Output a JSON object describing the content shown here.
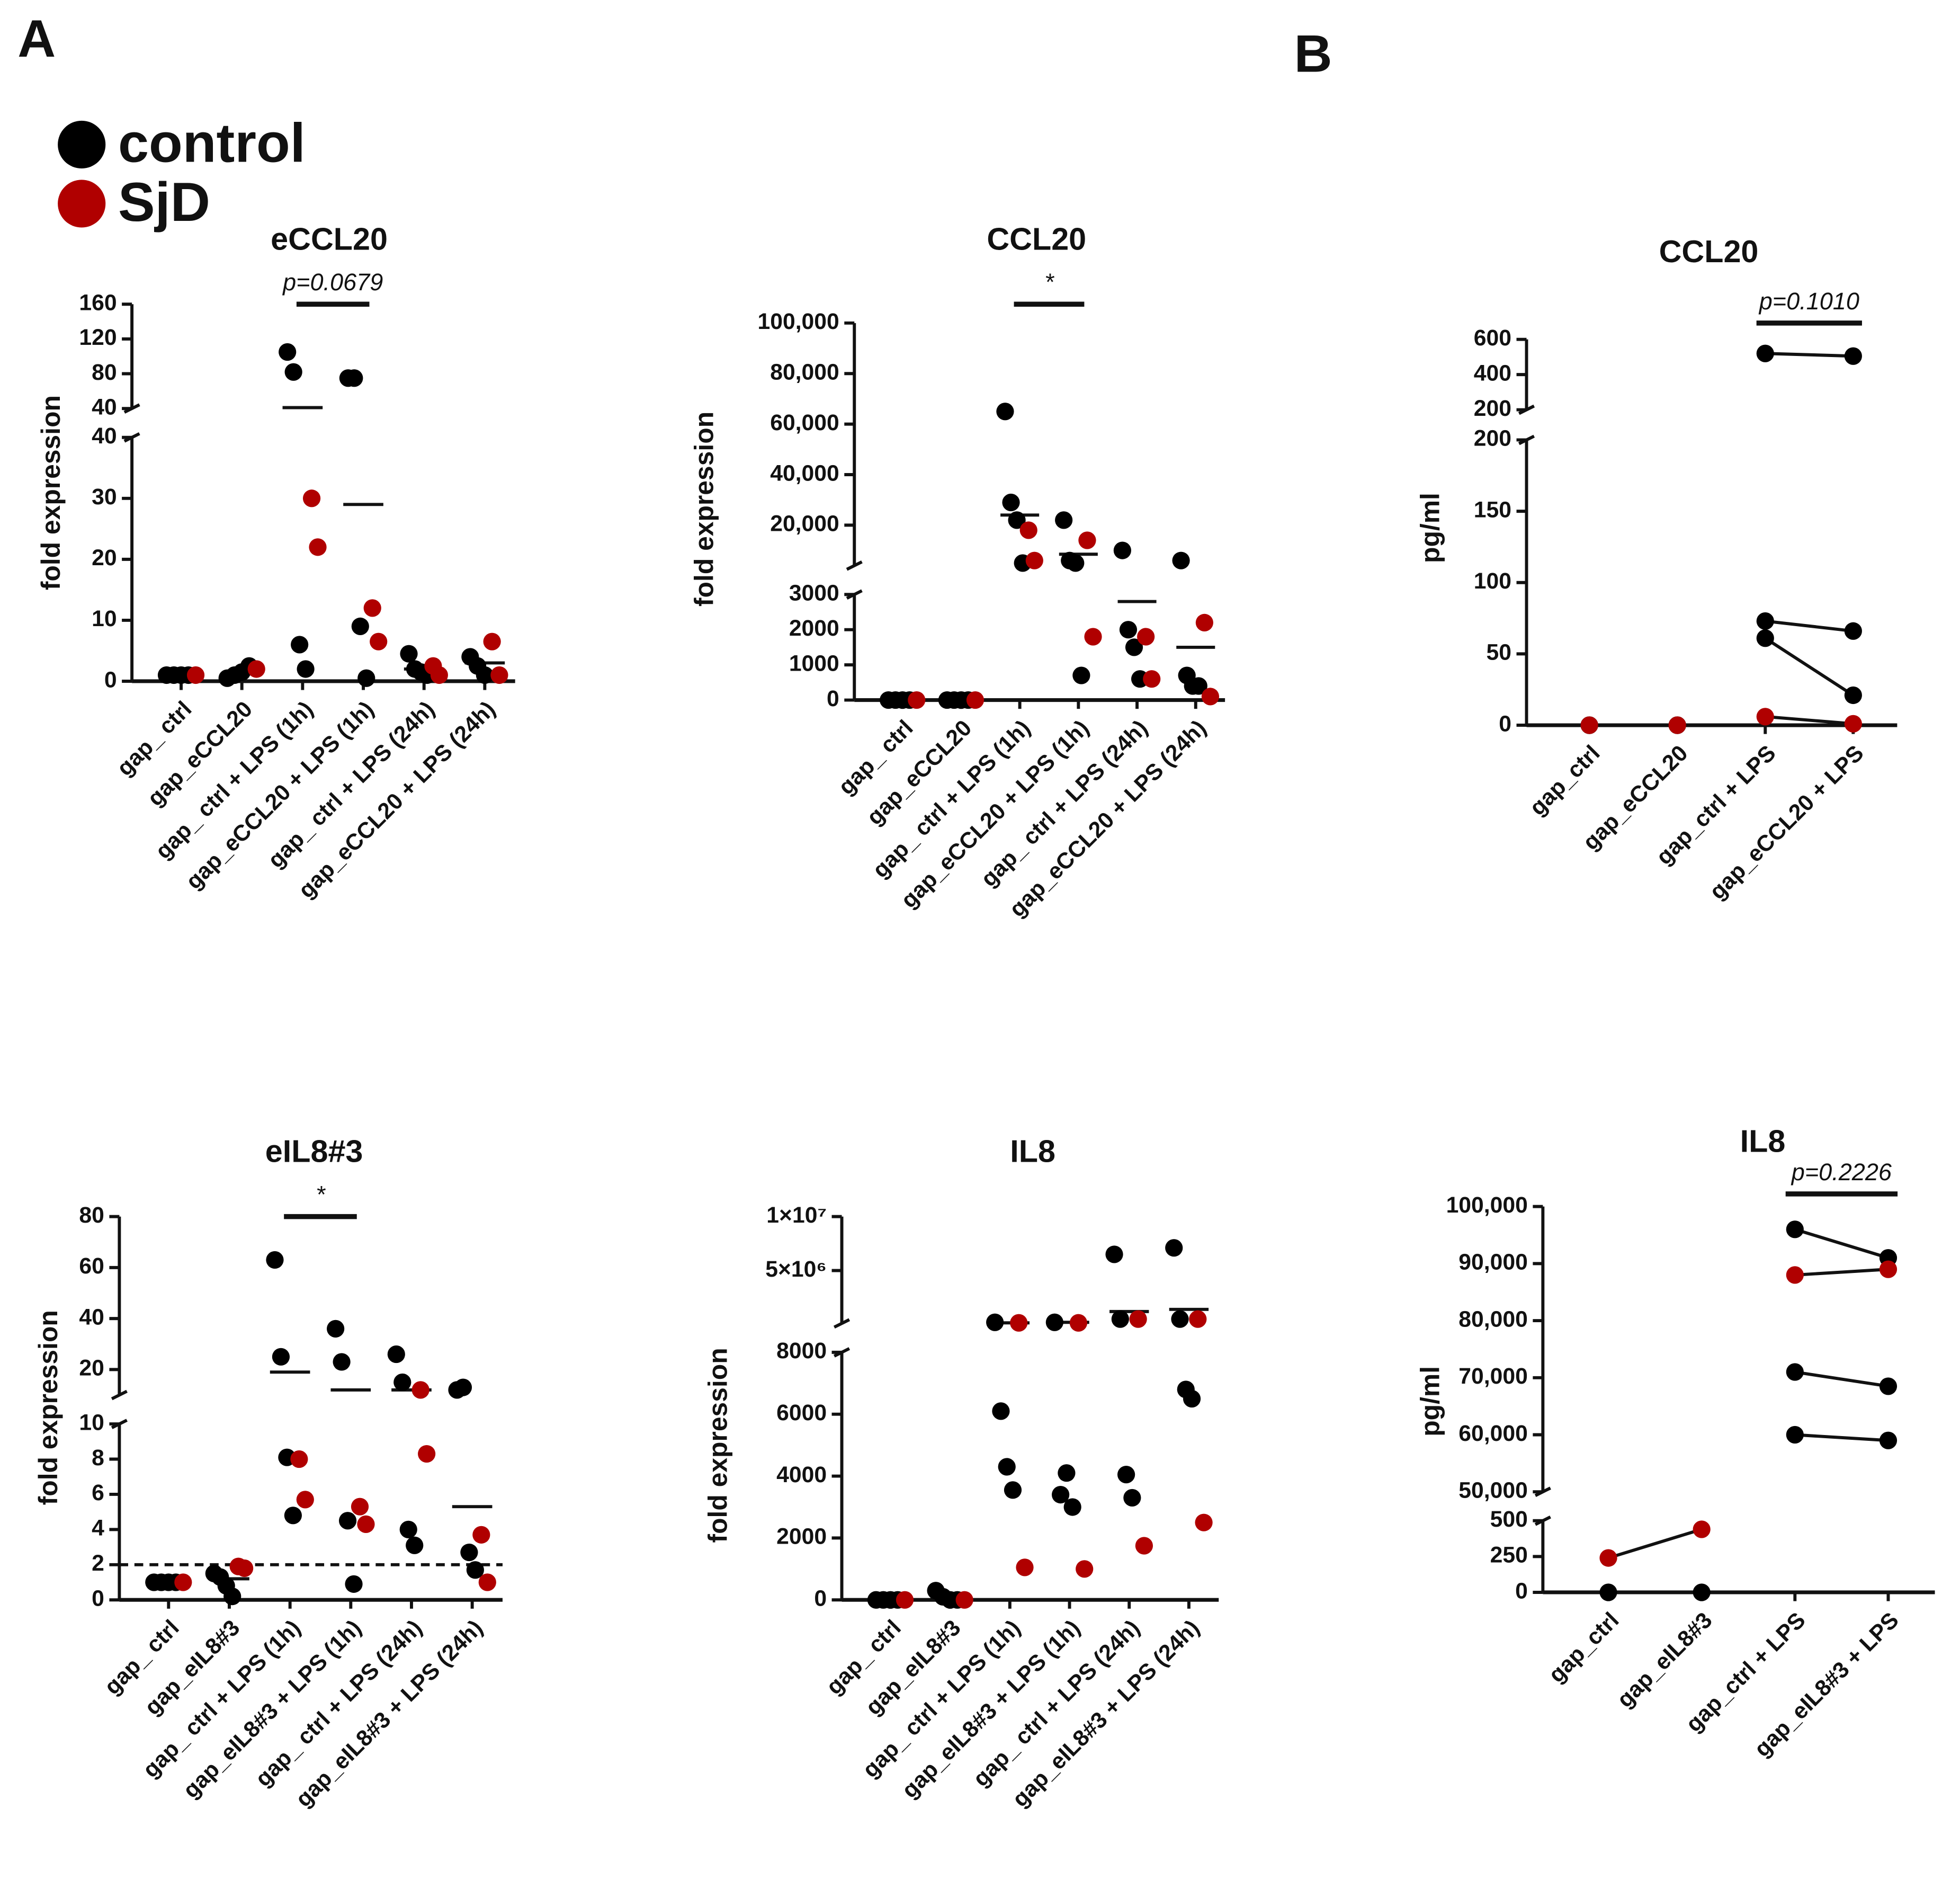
{
  "panels": [
    "A",
    "B"
  ],
  "legend": [
    {
      "name": "control",
      "color": "#000000"
    },
    {
      "name": "SjD",
      "color": "#b00000"
    }
  ],
  "chart_data": [
    {
      "type": "dot",
      "title": "eCCL20",
      "y_label": "fold expression",
      "categories": [
        "gap_ ctrl",
        "gap_eCCL20",
        "gap_ ctrl + LPS (1h)",
        "gap_eCCL20 + LPS (1h)",
        "gap_ ctrl + LPS (24h)",
        "gap_eCCL20 + LPS (24h)"
      ],
      "y_segments": [
        {
          "ylim": [
            0,
            40
          ],
          "yticks": [
            0,
            10,
            20,
            30,
            40
          ]
        },
        {
          "ylim": [
            40,
            160
          ],
          "yticks": [
            40,
            80,
            120,
            160
          ]
        }
      ],
      "series": [
        {
          "values": [
            [
              1,
              1,
              1,
              1
            ],
            [
              0.5,
              1,
              1.5,
              2.5
            ],
            [
              105,
              82,
              6,
              2
            ],
            [
              75,
              75,
              9,
              0.5
            ],
            [
              4.5,
              2,
              1.5,
              1
            ],
            [
              4,
              2.5,
              1
            ]
          ]
        },
        {
          "values": [
            [
              1
            ],
            [
              2
            ],
            [
              30,
              22
            ],
            [
              12,
              6.5
            ],
            [
              2.5,
              1
            ],
            [
              6.5,
              1
            ]
          ]
        }
      ],
      "means": [
        1,
        1.2,
        41,
        29,
        2,
        3
      ],
      "significance": [
        {
          "label": "p=0.0679",
          "from": 2,
          "to": 3
        }
      ]
    },
    {
      "type": "dot",
      "title": "CCL20",
      "y_label": "fold expression",
      "categories": [
        "gap_ ctrl",
        "gap_eCCL20",
        "gap_ ctrl + LPS (1h)",
        "gap_eCCL20 + LPS (1h)",
        "gap_ ctrl + LPS (24h)",
        "gap_eCCL20 + LPS (24h)"
      ],
      "y_segments": [
        {
          "ylim": [
            0,
            3000
          ],
          "yticks": [
            0,
            1000,
            2000,
            3000
          ]
        },
        {
          "ylim": [
            4000,
            100000
          ],
          "yticks": [
            {
              "value": 20000,
              "label": "20,000"
            },
            {
              "value": 40000,
              "label": "40,000"
            },
            {
              "value": 60000,
              "label": "60,000"
            },
            {
              "value": 80000,
              "label": "80,000"
            },
            {
              "value": 100000,
              "label": "100,000"
            }
          ]
        }
      ],
      "series": [
        {
          "values": [
            [
              0,
              0,
              0,
              0
            ],
            [
              0,
              0,
              0,
              0
            ],
            [
              65000,
              29000,
              22000,
              5000
            ],
            [
              22000,
              6000,
              5000,
              700
            ],
            [
              10000,
              2000,
              1500,
              600
            ],
            [
              6000,
              700,
              400,
              400
            ]
          ]
        },
        {
          "values": [
            [
              0
            ],
            [
              0
            ],
            [
              18000,
              6000
            ],
            [
              14000,
              1800
            ],
            [
              1800,
              600
            ],
            [
              2200,
              100
            ]
          ]
        }
      ],
      "means": [
        0,
        0,
        24000,
        8500,
        2800,
        1500
      ],
      "significance": [
        {
          "label": "*",
          "from": 2,
          "to": 3
        }
      ]
    },
    {
      "type": "paired",
      "title": "CCL20",
      "y_label": "pg/ml",
      "categories": [
        "gap_ctrl",
        "gap_eCCL20",
        "gap_ctrl + LPS",
        "gap_eCCL20 + LPS"
      ],
      "y_segments": [
        {
          "ylim": [
            0,
            200
          ],
          "yticks": [
            0,
            50,
            100,
            150,
            200
          ]
        },
        {
          "ylim": [
            200,
            600
          ],
          "yticks": [
            200,
            400,
            600
          ]
        }
      ],
      "series": [
        {
          "values": [
            [
              0,
              0,
              0
            ],
            [
              0,
              0,
              0
            ],
            [
              520,
              73,
              61
            ],
            [
              505,
              66,
              21
            ]
          ]
        },
        {
          "values": [
            [
              0
            ],
            [
              0
            ],
            [
              6
            ],
            [
              1
            ]
          ]
        }
      ],
      "significance": [
        {
          "label": "p=0.1010",
          "from": 2,
          "to": 3
        }
      ]
    },
    {
      "type": "dot",
      "title": "eIL8#3",
      "y_label": "fold expression",
      "categories": [
        "gap_ ctrl",
        "gap_eIL8#3",
        "gap_ ctrl + LPS (1h)",
        "gap_eIL8#3 + LPS (1h)",
        "gap_ ctrl + LPS (24h)",
        "gap_eIL8#3 + LPS (24h)"
      ],
      "y_segments": [
        {
          "ylim": [
            0,
            10
          ],
          "yticks": [
            0,
            2,
            4,
            6,
            8,
            10
          ]
        },
        {
          "ylim": [
            10,
            80
          ],
          "yticks": [
            20,
            40,
            60,
            80
          ]
        }
      ],
      "series": [
        {
          "values": [
            [
              1,
              1,
              1,
              1
            ],
            [
              1.5,
              1.3,
              0.8,
              0.2
            ],
            [
              63,
              25,
              8.1,
              4.8
            ],
            [
              36,
              23,
              4.5,
              0.9
            ],
            [
              26,
              15,
              4,
              3.1
            ],
            [
              12,
              13,
              2.7,
              1.7
            ]
          ]
        },
        {
          "values": [
            [
              1
            ],
            [
              1.9,
              1.8
            ],
            [
              8,
              5.7
            ],
            [
              5.3,
              4.3
            ],
            [
              12,
              8.3
            ],
            [
              3.7,
              1
            ]
          ]
        }
      ],
      "means": [
        1,
        1.2,
        19,
        12,
        12,
        5.3
      ],
      "reference_line": 2,
      "significance": [
        {
          "label": "*",
          "from": 2,
          "to": 3
        }
      ]
    },
    {
      "type": "dot",
      "title": "IL8",
      "y_label": "fold expression",
      "categories": [
        "gap_ ctrl",
        "gap_eIL8#3",
        "gap_ ctrl + LPS (1h)",
        "gap_eIL8#3 + LPS (1h)",
        "gap_ ctrl + LPS (24h)",
        "gap_eIL8#3 + LPS (24h)"
      ],
      "y_segments": [
        {
          "ylim": [
            0,
            8000
          ],
          "yticks": [
            0,
            2000,
            4000,
            6000,
            8000
          ]
        },
        {
          "ylim": [
            100000,
            10000000
          ],
          "yticks": [
            {
              "value": 5000000,
              "label": "5×10⁶"
            },
            {
              "value": 10000000,
              "label": "1×10⁷"
            }
          ]
        }
      ],
      "series": [
        {
          "values": [
            [
              0,
              0,
              0,
              0
            ],
            [
              300,
              100,
              0,
              0
            ],
            [
              200000,
              6100,
              4300,
              3550
            ],
            [
              200000,
              3400,
              4100,
              3000
            ],
            [
              6500000,
              500000,
              4050,
              3300
            ],
            [
              7100000,
              500000,
              6800,
              6500
            ]
          ]
        },
        {
          "values": [
            [
              0
            ],
            [
              0
            ],
            [
              150000,
              1050
            ],
            [
              150000,
              1000
            ],
            [
              500000,
              1750
            ],
            [
              500000,
              2500
            ]
          ]
        }
      ],
      "means": [
        0,
        80,
        150000,
        200000,
        1200000,
        1400000
      ],
      "significance": []
    },
    {
      "type": "paired",
      "title": "IL8",
      "y_label": "pg/ml",
      "categories": [
        "gap_ctrl",
        "gap_eIL8#3",
        "gap_ctrl + LPS",
        "gap_eIL8#3 + LPS"
      ],
      "y_segments": [
        {
          "ylim": [
            0,
            500
          ],
          "yticks": [
            0,
            250,
            500
          ]
        },
        {
          "ylim": [
            50000,
            100000
          ],
          "yticks": [
            {
              "value": 50000,
              "label": "50,000"
            },
            {
              "value": 60000,
              "label": "60,000"
            },
            {
              "value": 70000,
              "label": "70,000"
            },
            {
              "value": 80000,
              "label": "80,000"
            },
            {
              "value": 90000,
              "label": "90,000"
            },
            {
              "value": 100000,
              "label": "100,000"
            }
          ]
        }
      ],
      "series": [
        {
          "values": [
            [
              0
            ],
            [
              0
            ],
            [
              96000,
              71000,
              60000
            ],
            [
              91000,
              68500,
              59000
            ]
          ]
        },
        {
          "values": [
            [
              240
            ],
            [
              440
            ],
            [
              88000
            ],
            [
              89000
            ]
          ]
        }
      ],
      "significance": [
        {
          "label": "p=0.2226",
          "from": 2,
          "to": 3
        }
      ]
    }
  ]
}
